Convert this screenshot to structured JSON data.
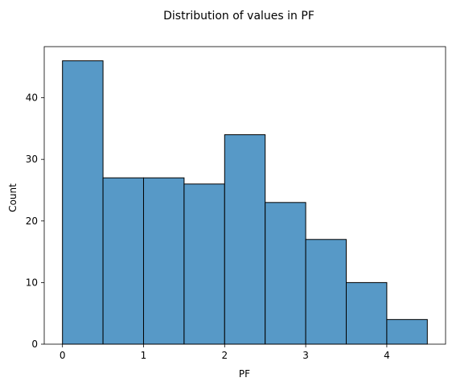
{
  "chart_data": {
    "type": "bar",
    "subtype": "histogram",
    "title": "Distribution of values in PF",
    "xlabel": "PF",
    "ylabel": "Count",
    "bins": [
      {
        "start": 0.0,
        "end": 0.5,
        "count": 46
      },
      {
        "start": 0.5,
        "end": 1.0,
        "count": 27
      },
      {
        "start": 1.0,
        "end": 1.5,
        "count": 27
      },
      {
        "start": 1.5,
        "end": 2.0,
        "count": 26
      },
      {
        "start": 2.0,
        "end": 2.5,
        "count": 34
      },
      {
        "start": 2.5,
        "end": 3.0,
        "count": 23
      },
      {
        "start": 3.0,
        "end": 3.5,
        "count": 17
      },
      {
        "start": 3.5,
        "end": 4.0,
        "count": 10
      },
      {
        "start": 4.0,
        "end": 4.5,
        "count": 4
      }
    ],
    "xlim": [
      -0.225,
      4.725
    ],
    "ylim": [
      0,
      48.3
    ],
    "xticks": [
      0,
      1,
      2,
      3,
      4
    ],
    "yticks": [
      0,
      10,
      20,
      30,
      40
    ],
    "grid": false,
    "bar_color": "#5799c7",
    "edge_color": "#000000"
  }
}
